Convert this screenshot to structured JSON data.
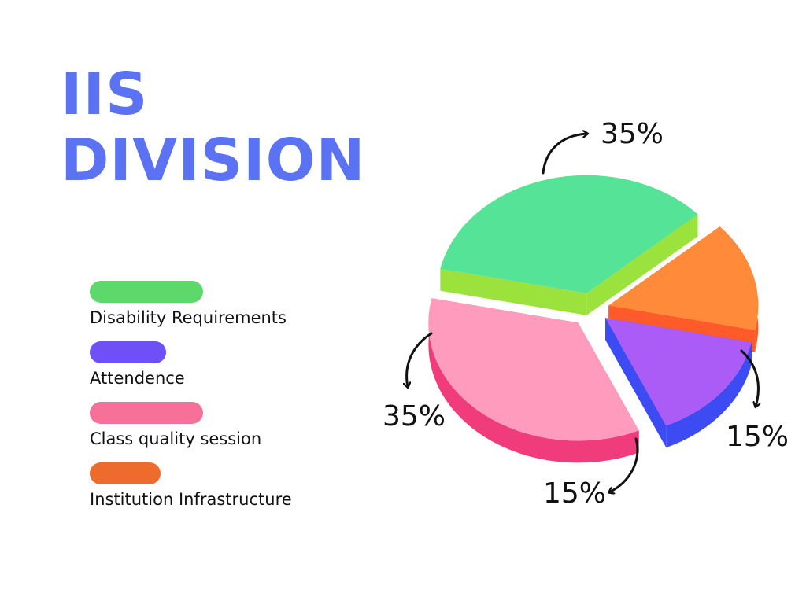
{
  "title": {
    "line1": "IIS",
    "line2": "DIVISION"
  },
  "colors": {
    "title": "#5b72f2"
  },
  "chart_data": {
    "type": "pie",
    "title": "IIS DIVISION",
    "slices": [
      {
        "label": "Disability Requirements",
        "value": 35,
        "value_label": "35%",
        "color": "#5cd96a",
        "top_color": "#3ee08a",
        "side_color": "#9be23c"
      },
      {
        "label": "Attendence",
        "value": 15,
        "value_label": "15%",
        "color": "#6f4ff6",
        "top_color": "#a046f5",
        "side_color": "#3d4cf2"
      },
      {
        "label": "Class quality session",
        "value": 35,
        "value_label": "35%",
        "color": "#f7709a",
        "top_color": "#ff8fb4",
        "side_color": "#f03c7a"
      },
      {
        "label": "Institution Infrastructure",
        "value": 15,
        "value_label": "15%",
        "color": "#ee6b2e",
        "top_color": "#ff7a1e",
        "side_color": "#ff5a2a"
      }
    ],
    "legend_position": "left"
  }
}
